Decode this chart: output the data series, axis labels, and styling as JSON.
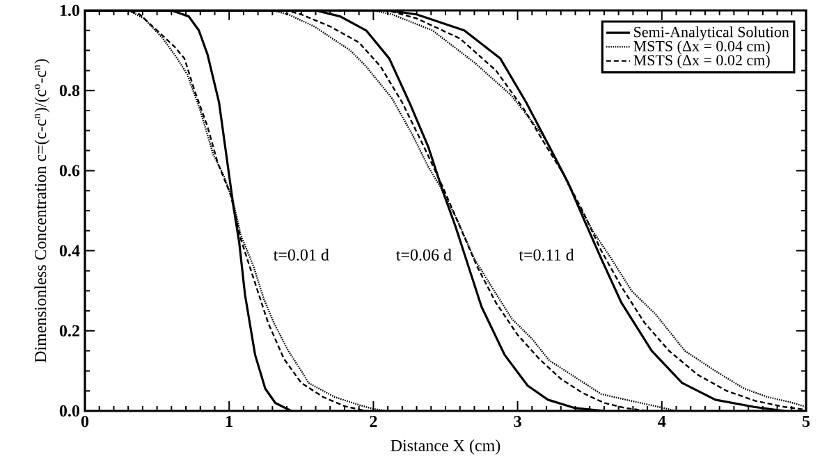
{
  "chart_data": {
    "type": "line",
    "xlabel": "Distance X (cm)",
    "ylabel": "Dimensionless Concentration c=(c-c$^{n}$)/(c$^{o}$-c$^{n}$)",
    "xlim": [
      0,
      5
    ],
    "ylim": [
      0,
      1
    ],
    "xticks": [
      0,
      1,
      2,
      3,
      4,
      5
    ],
    "yticks": [
      {
        "value": 0,
        "label": "0.0"
      },
      {
        "value": 0.2,
        "label": "0.2"
      },
      {
        "value": 0.4,
        "label": "0.4"
      },
      {
        "value": 0.6,
        "label": "0.6"
      },
      {
        "value": 0.8,
        "label": "0.8"
      },
      {
        "value": 1,
        "label": "1.0"
      }
    ],
    "grid": false,
    "legend": "top right",
    "marker": "none",
    "annotations": [
      "t=0.01 d",
      "t=0.06 d",
      "t=0.11 d"
    ],
    "series": [
      {
        "name": "Semi-Analytical Solution",
        "color": "#000000",
        "line_style": "solid",
        "x": [
          0,
          0.6,
          0.72,
          0.79,
          0.85,
          0.93,
          0.98,
          1.03,
          1.07,
          1.11,
          1.18,
          1.25,
          1.32,
          1.43
        ],
        "values": [
          1,
          1,
          0.985,
          0.95,
          0.89,
          0.77,
          0.64,
          0.51,
          0.42,
          0.29,
          0.14,
          0.056,
          0.02,
          0
        ]
      },
      {
        "name": "MSTS (Δx = 0.04 cm)",
        "color": "#000000",
        "line_style": "dotted",
        "x": [
          0,
          0.3,
          0.41,
          0.54,
          0.64,
          0.71,
          0.8,
          0.89,
          0.96,
          1.03,
          1.08,
          1.17,
          1.24,
          1.31,
          1.41,
          1.5,
          1.55,
          1.73,
          1.91,
          2.0,
          2.1
        ],
        "values": [
          1,
          1,
          0.98,
          0.93,
          0.88,
          0.84,
          0.75,
          0.64,
          0.59,
          0.52,
          0.44,
          0.36,
          0.28,
          0.22,
          0.15,
          0.1,
          0.07,
          0.035,
          0.014,
          0.005,
          0
        ]
      },
      {
        "name": "MSTS (Δx = 0.02 cm)",
        "color": "#000000",
        "line_style": "dashed",
        "x": [
          0,
          0.3,
          0.38,
          0.5,
          0.62,
          0.69,
          0.76,
          0.85,
          0.92,
          1.01,
          1.08,
          1.17,
          1.27,
          1.38,
          1.5,
          1.65,
          1.8,
          1.95
        ],
        "values": [
          1,
          1,
          0.99,
          0.95,
          0.91,
          0.88,
          0.8,
          0.71,
          0.62,
          0.54,
          0.43,
          0.33,
          0.22,
          0.13,
          0.07,
          0.035,
          0.012,
          0
        ]
      },
      {
        "color": "#000000",
        "line_style": "solid",
        "x": [
          0,
          1.6,
          1.77,
          1.95,
          2.11,
          2.25,
          2.38,
          2.48,
          2.57,
          2.66,
          2.75,
          2.91,
          3.07,
          3.21,
          3.4,
          3.6
        ],
        "values": [
          1,
          1,
          0.985,
          0.95,
          0.88,
          0.77,
          0.66,
          0.55,
          0.46,
          0.36,
          0.26,
          0.14,
          0.063,
          0.028,
          0.007,
          0
        ]
      },
      {
        "color": "#000000",
        "line_style": "dotted",
        "x": [
          0,
          1.3,
          1.41,
          1.59,
          1.84,
          1.95,
          2.13,
          2.27,
          2.38,
          2.48,
          2.59,
          2.7,
          2.82,
          2.96,
          3.1,
          3.22,
          3.4,
          3.58,
          3.75,
          3.93,
          4.1
        ],
        "values": [
          1,
          1,
          0.99,
          0.96,
          0.9,
          0.86,
          0.78,
          0.69,
          0.61,
          0.55,
          0.47,
          0.38,
          0.31,
          0.23,
          0.18,
          0.126,
          0.084,
          0.042,
          0.028,
          0.014,
          0
        ]
      },
      {
        "color": "#000000",
        "line_style": "dashed",
        "x": [
          0,
          1.4,
          1.5,
          1.7,
          1.9,
          2.05,
          2.2,
          2.35,
          2.48,
          2.6,
          2.72,
          2.85,
          3.0,
          3.15,
          3.3,
          3.45,
          3.6,
          3.75,
          3.9
        ],
        "values": [
          1,
          1,
          0.99,
          0.96,
          0.92,
          0.86,
          0.77,
          0.66,
          0.56,
          0.46,
          0.36,
          0.27,
          0.19,
          0.13,
          0.08,
          0.045,
          0.02,
          0.007,
          0
        ]
      },
      {
        "color": "#000000",
        "line_style": "solid",
        "x": [
          0,
          2.1,
          2.3,
          2.63,
          2.88,
          3.06,
          3.22,
          3.35,
          3.47,
          3.58,
          3.72,
          3.93,
          4.14,
          4.37,
          4.64,
          4.85
        ],
        "values": [
          1,
          1,
          0.99,
          0.95,
          0.88,
          0.77,
          0.66,
          0.57,
          0.47,
          0.38,
          0.27,
          0.15,
          0.07,
          0.028,
          0.01,
          0
        ]
      },
      {
        "color": "#000000",
        "line_style": "dotted",
        "x": [
          0,
          2.0,
          2.13,
          2.41,
          2.7,
          2.95,
          3.04,
          3.19,
          3.29,
          3.4,
          3.52,
          3.65,
          3.79,
          3.96,
          4.16,
          4.37,
          4.57,
          4.73,
          4.9,
          5.0
        ],
        "values": [
          1,
          1,
          0.99,
          0.95,
          0.87,
          0.79,
          0.75,
          0.68,
          0.61,
          0.53,
          0.45,
          0.38,
          0.3,
          0.24,
          0.15,
          0.1,
          0.056,
          0.035,
          0.021,
          0.01
        ]
      },
      {
        "color": "#000000",
        "line_style": "dashed",
        "x": [
          0,
          2.1,
          2.3,
          2.6,
          2.85,
          3.05,
          3.2,
          3.32,
          3.45,
          3.58,
          3.72,
          3.88,
          4.05,
          4.25,
          4.45,
          4.65,
          4.85,
          5.0
        ],
        "values": [
          1,
          1,
          0.98,
          0.93,
          0.85,
          0.75,
          0.66,
          0.59,
          0.5,
          0.4,
          0.31,
          0.22,
          0.15,
          0.09,
          0.05,
          0.025,
          0.01,
          0.003
        ]
      }
    ]
  }
}
